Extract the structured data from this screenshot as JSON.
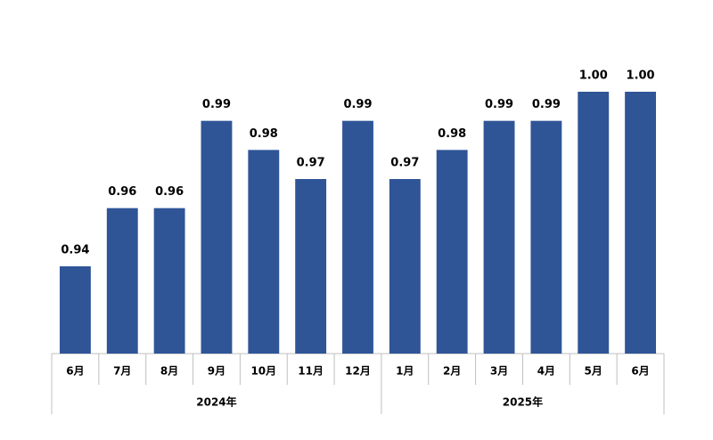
{
  "chart_data": {
    "type": "bar",
    "color": "#2f5597",
    "categories": [
      [
        "6月",
        "2024年"
      ],
      [
        "7月",
        null
      ],
      [
        "8月",
        null
      ],
      [
        "9月",
        null
      ],
      [
        "10月",
        null
      ],
      [
        "11月",
        null
      ],
      [
        "12月",
        null
      ],
      [
        "1月",
        "2025年"
      ],
      [
        "2月",
        null
      ],
      [
        "3月",
        null
      ],
      [
        "4月",
        null
      ],
      [
        "5月",
        null
      ],
      [
        "6月",
        null
      ]
    ],
    "values": [
      0.94,
      0.96,
      0.96,
      0.99,
      0.98,
      0.97,
      0.99,
      0.97,
      0.98,
      0.99,
      0.99,
      1.0,
      1.0
    ],
    "value_labels": [
      "0.94",
      "0.96",
      "0.96",
      "0.99",
      "0.98",
      "0.97",
      "0.99",
      "0.97",
      "0.98",
      "0.99",
      "0.99",
      "1.00",
      "1.00"
    ],
    "ylim": [
      0.91,
      1.0
    ]
  }
}
